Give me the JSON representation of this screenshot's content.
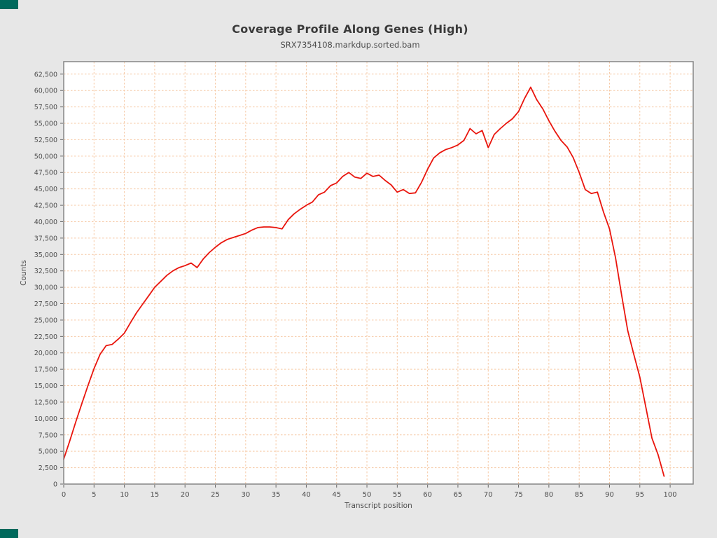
{
  "window": {
    "background_color": "#e7e7e7",
    "corner_accent_color": "#00695c"
  },
  "header": {
    "title": "Coverage Profile Along Genes (High)",
    "subtitle": "SRX7354108.markdup.sorted.bam"
  },
  "chart_data": {
    "type": "line",
    "title": "Coverage Profile Along Genes (High)",
    "subtitle": "SRX7354108.markdup.sorted.bam",
    "xlabel": "Transcript position",
    "ylabel": "Counts",
    "xlim": [
      0,
      103.8
    ],
    "ylim": [
      0,
      64400
    ],
    "x_ticks": [
      0,
      5,
      10,
      15,
      20,
      25,
      30,
      35,
      40,
      45,
      50,
      55,
      60,
      65,
      70,
      75,
      80,
      85,
      90,
      95,
      100
    ],
    "y_ticks": [
      0,
      2500,
      5000,
      7500,
      10000,
      12500,
      15000,
      17500,
      20000,
      22500,
      25000,
      27500,
      30000,
      32500,
      35000,
      37500,
      40000,
      42500,
      45000,
      47500,
      50000,
      52500,
      55000,
      57500,
      60000,
      62500
    ],
    "grid": {
      "show": true,
      "style": "dashed",
      "color": "#f6c9a5"
    },
    "legend": {
      "show": false
    },
    "plot_background": "#ffffff",
    "axis_border_color": "#858585",
    "tick_color": "#666666",
    "tick_label_color": "#4d4d4d",
    "series": [
      {
        "name": "SRX7354108.markdup.sorted.bam",
        "color": "#e9150d",
        "x": [
          0,
          1,
          2,
          3,
          4,
          5,
          6,
          7,
          8,
          9,
          10,
          11,
          12,
          13,
          14,
          15,
          16,
          17,
          18,
          19,
          20,
          21,
          22,
          23,
          24,
          25,
          26,
          27,
          28,
          29,
          30,
          31,
          32,
          33,
          34,
          35,
          36,
          37,
          38,
          39,
          40,
          41,
          42,
          43,
          44,
          45,
          46,
          47,
          48,
          49,
          50,
          51,
          52,
          53,
          54,
          55,
          56,
          57,
          58,
          59,
          60,
          61,
          62,
          63,
          64,
          65,
          66,
          67,
          68,
          69,
          70,
          71,
          72,
          73,
          74,
          75,
          76,
          77,
          78,
          79,
          80,
          81,
          82,
          83,
          84,
          85,
          86,
          87,
          88,
          89,
          90,
          91,
          92,
          93,
          94,
          95,
          96,
          97,
          98,
          99
        ],
        "y": [
          3800,
          6600,
          9500,
          12300,
          15000,
          17600,
          19800,
          21100,
          21300,
          22100,
          23000,
          24600,
          26100,
          27400,
          28700,
          30000,
          30900,
          31800,
          32500,
          33000,
          33300,
          33700,
          33000,
          34300,
          35300,
          36100,
          36800,
          37300,
          37600,
          37900,
          38200,
          38700,
          39100,
          39200,
          39200,
          39100,
          38900,
          40300,
          41200,
          41900,
          42500,
          43000,
          44100,
          44500,
          45500,
          45900,
          46900,
          47500,
          46800,
          46600,
          47400,
          46900,
          47100,
          46300,
          45600,
          44500,
          44900,
          44300,
          44400,
          46000,
          48000,
          49700,
          50500,
          51000,
          51300,
          51700,
          52400,
          54200,
          53400,
          53900,
          51300,
          53300,
          54200,
          55000,
          55700,
          56800,
          58800,
          60500,
          58600,
          57200,
          55400,
          53800,
          52400,
          51400,
          49800,
          47500,
          44900,
          44300,
          44500,
          41500,
          38900,
          34500,
          28800,
          23400,
          19800,
          16300,
          11700,
          7000,
          4500,
          1200
        ]
      }
    ]
  }
}
